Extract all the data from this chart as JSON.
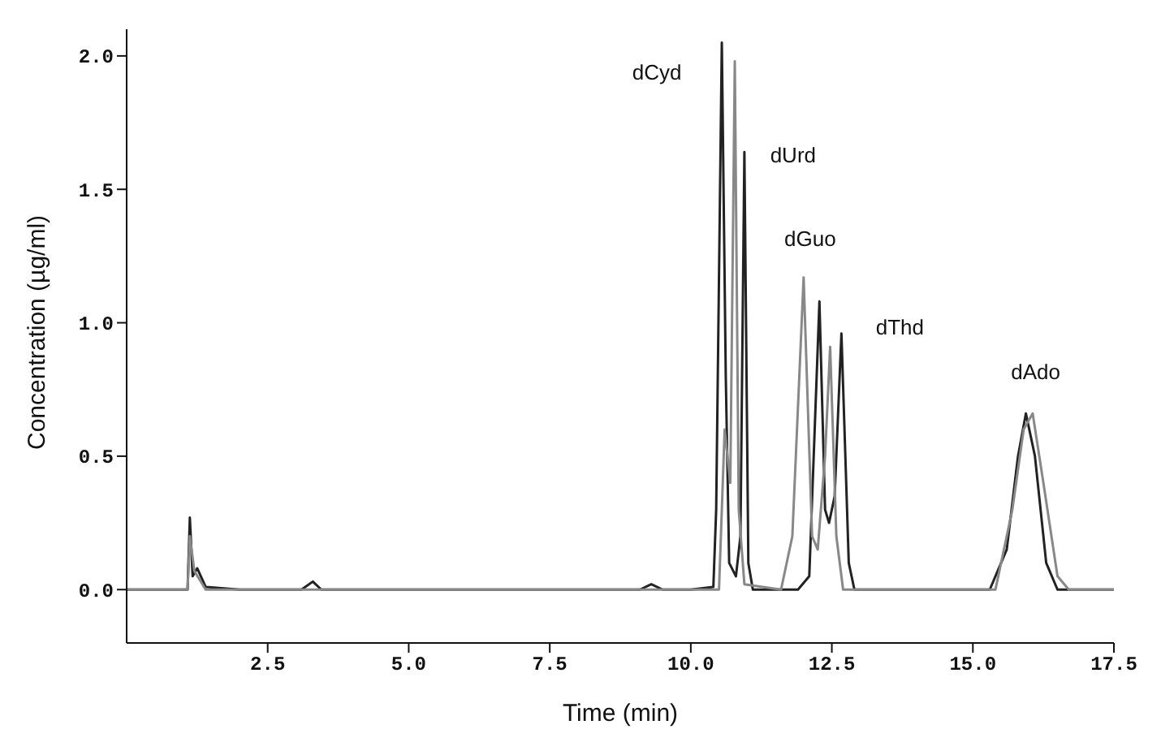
{
  "chart_data": {
    "type": "line",
    "xlabel": "Time (min)",
    "ylabel": "Concentration (µg/ml)",
    "xlim": [
      0,
      17.5
    ],
    "ylim": [
      -0.2,
      2.1
    ],
    "xticks": [
      2.5,
      {
        "value": 5,
        "label": "5.0"
      },
      7.5,
      {
        "value": 10,
        "label": "10.0"
      },
      12.5,
      {
        "value": 15,
        "label": "15.0"
      },
      17.5
    ],
    "yticks": [
      {
        "value": 0,
        "label": "0.0"
      },
      0.5,
      {
        "value": 1,
        "label": "1.0"
      },
      1.5,
      {
        "value": 2,
        "label": "2.0"
      }
    ],
    "grid": false,
    "legend": false,
    "marker": "none",
    "line_style": "solid",
    "series": [
      {
        "color": "#222222",
        "x": [
          0,
          0.5,
          1.0,
          1.08,
          1.12,
          1.17,
          1.25,
          1.4,
          2.0,
          3.1,
          3.3,
          3.45,
          5,
          7.5,
          9.1,
          9.3,
          9.5,
          10.0,
          10.4,
          10.45,
          10.55,
          10.62,
          10.68,
          10.8,
          10.88,
          10.95,
          11.02,
          11.1,
          11.9,
          12.1,
          12.28,
          12.38,
          12.45,
          12.55,
          12.67,
          12.8,
          12.9,
          15.3,
          15.6,
          15.8,
          15.94,
          16.1,
          16.3,
          16.5,
          17.5
        ],
        "values": [
          0,
          0,
          0,
          0,
          0.27,
          0.05,
          0.08,
          0.01,
          0,
          0,
          0.03,
          0,
          0,
          0,
          0,
          0.02,
          0,
          0,
          0.01,
          0.3,
          2.05,
          0.8,
          0.1,
          0.05,
          0.2,
          1.64,
          0.1,
          0,
          0,
          0.05,
          1.08,
          0.3,
          0.25,
          0.35,
          0.96,
          0.1,
          0,
          0,
          0.15,
          0.5,
          0.66,
          0.5,
          0.1,
          0,
          0
        ]
      },
      {
        "color": "#888888",
        "x": [
          0,
          1.08,
          1.12,
          1.2,
          1.4,
          10.5,
          10.6,
          10.7,
          10.78,
          10.85,
          10.95,
          11.6,
          11.8,
          12.0,
          12.15,
          12.25,
          12.38,
          12.47,
          12.58,
          12.7,
          15.4,
          15.7,
          15.9,
          16.06,
          16.25,
          16.5,
          16.7,
          17.5
        ],
        "values": [
          0,
          0,
          0.2,
          0.07,
          0,
          0,
          0.6,
          0.4,
          1.98,
          0.3,
          0.02,
          0,
          0.2,
          1.17,
          0.2,
          0.15,
          0.5,
          0.91,
          0.2,
          0,
          0,
          0.3,
          0.6,
          0.66,
          0.4,
          0.05,
          0,
          0
        ]
      }
    ],
    "annotations": [
      {
        "text": "dCyd",
        "x": 10.55,
        "y": 2.05
      },
      {
        "text": "dUrd",
        "x": 10.95,
        "y": 1.64
      },
      {
        "text": "dGuo",
        "x": 12.0,
        "y": 1.17
      },
      {
        "text": "dThd",
        "x": 12.67,
        "y": 0.96
      },
      {
        "text": "dAdo",
        "x": 15.94,
        "y": 0.66
      }
    ]
  }
}
